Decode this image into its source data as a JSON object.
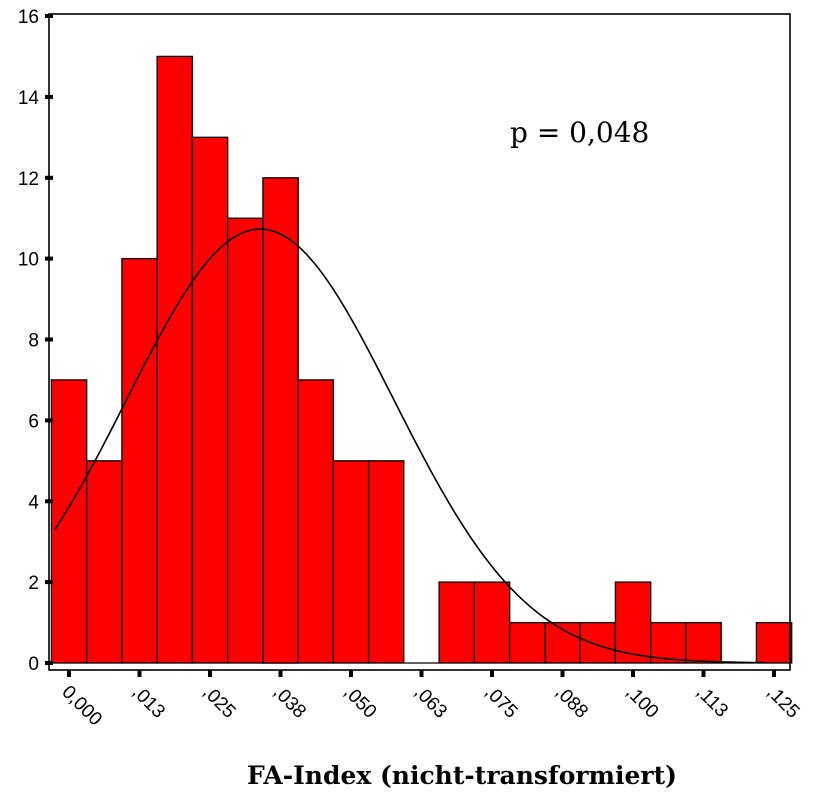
{
  "chart_data": {
    "type": "bar",
    "subtype": "histogram",
    "xlabel": "FA-Index (nicht-transformiert)",
    "ylabel": "",
    "ylim": [
      0,
      16
    ],
    "yticks": [
      0,
      2,
      4,
      6,
      8,
      10,
      12,
      14,
      16
    ],
    "bin_width": 0.00625,
    "x_start": -0.003125,
    "values": [
      7,
      5,
      10,
      15,
      13,
      11,
      12,
      7,
      5,
      5,
      0,
      2,
      2,
      1,
      1,
      1,
      2,
      1,
      1,
      0,
      1
    ],
    "xtick_values": [
      0.0,
      0.0125,
      0.025,
      0.0375,
      0.05,
      0.0625,
      0.075,
      0.0875,
      0.1,
      0.1125,
      0.125
    ],
    "xtick_labels": [
      "0,000",
      ",013",
      ",025",
      ",038",
      ",050",
      ",063",
      ",075",
      ",088",
      ",100",
      ",113",
      ",125"
    ],
    "bar_color": "#ff0000",
    "normal_curve": {
      "mean": 0.0339,
      "sd": 0.0237,
      "n": 102
    },
    "annotation": "p = 0,048",
    "grid": false,
    "legend": "none"
  }
}
